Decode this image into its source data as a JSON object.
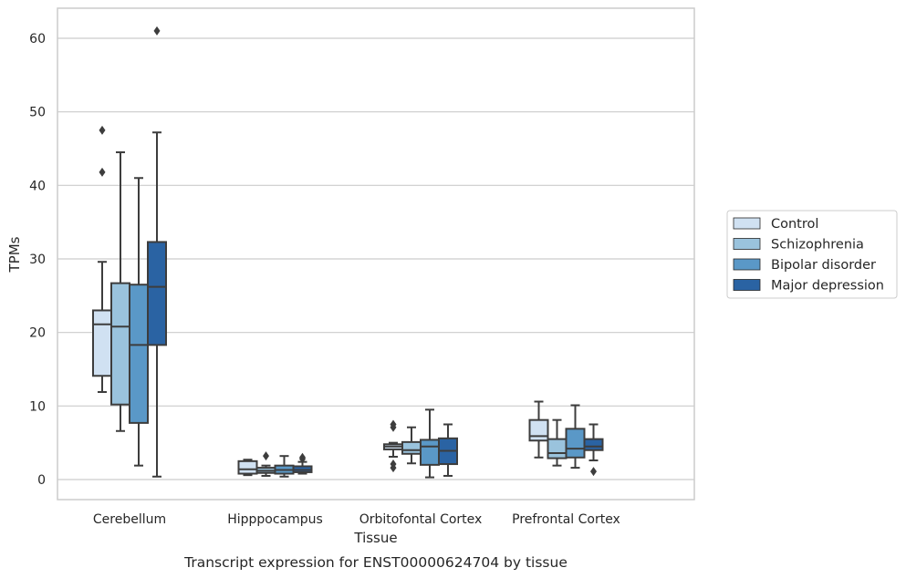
{
  "chart_data": {
    "type": "box",
    "title": "",
    "caption": "Transcript expression for ENST00000624704 by tissue",
    "xlabel": "Tissue",
    "ylabel": "TPMs",
    "ylim": [
      -2.7,
      64.0
    ],
    "yticks": [
      0,
      10,
      20,
      30,
      40,
      50,
      60
    ],
    "grid": "horizontal",
    "legend_position": "right",
    "categories": [
      "Cerebellum",
      "Hipppocampus",
      "Orbitofontal Cortex",
      "Prefrontal Cortex"
    ],
    "series": [
      {
        "name": "Control",
        "color": "#d0e1f2",
        "boxes": [
          {
            "whislo": 11.9,
            "q1": 14.1,
            "med": 21.1,
            "q3": 23.0,
            "whishi": 29.6,
            "fliers": [
              41.8,
              47.5
            ]
          },
          {
            "whislo": 0.6,
            "q1": 0.8,
            "med": 1.4,
            "q3": 2.5,
            "whishi": 2.7,
            "fliers": []
          },
          {
            "whislo": 3.1,
            "q1": 4.1,
            "med": 4.5,
            "q3": 4.8,
            "whishi": 5.0,
            "fliers": [
              1.6,
              2.1,
              7.1,
              7.5
            ]
          },
          {
            "whislo": 3.0,
            "q1": 5.3,
            "med": 5.9,
            "q3": 8.1,
            "whishi": 10.6,
            "fliers": []
          }
        ]
      },
      {
        "name": "Schizophrenia",
        "color": "#9ac3dd",
        "boxes": [
          {
            "whislo": 6.6,
            "q1": 10.2,
            "med": 20.8,
            "q3": 26.7,
            "whishi": 44.5,
            "fliers": []
          },
          {
            "whislo": 0.5,
            "q1": 0.9,
            "med": 1.2,
            "q3": 1.6,
            "whishi": 1.9,
            "fliers": [
              3.2
            ]
          },
          {
            "whislo": 2.2,
            "q1": 3.5,
            "med": 4.0,
            "q3": 5.1,
            "whishi": 7.1,
            "fliers": []
          },
          {
            "whislo": 1.9,
            "q1": 2.9,
            "med": 3.6,
            "q3": 5.5,
            "whishi": 8.1,
            "fliers": []
          }
        ]
      },
      {
        "name": "Bipolar disorder",
        "color": "#5a98c7",
        "boxes": [
          {
            "whislo": 1.9,
            "q1": 7.7,
            "med": 18.3,
            "q3": 26.5,
            "whishi": 41.0,
            "fliers": []
          },
          {
            "whislo": 0.4,
            "q1": 0.8,
            "med": 1.3,
            "q3": 1.9,
            "whishi": 3.2,
            "fliers": []
          },
          {
            "whislo": 0.3,
            "q1": 2.0,
            "med": 4.5,
            "q3": 5.4,
            "whishi": 9.5,
            "fliers": []
          },
          {
            "whislo": 1.6,
            "q1": 3.0,
            "med": 4.2,
            "q3": 6.9,
            "whishi": 10.1,
            "fliers": []
          }
        ]
      },
      {
        "name": "Major depression",
        "color": "#2a63a3",
        "boxes": [
          {
            "whislo": 0.4,
            "q1": 18.3,
            "med": 26.2,
            "q3": 32.3,
            "whishi": 47.2,
            "fliers": [
              61.0
            ]
          },
          {
            "whislo": 0.8,
            "q1": 1.0,
            "med": 1.3,
            "q3": 1.8,
            "whishi": 2.4,
            "fliers": [
              2.8,
              3.0
            ]
          },
          {
            "whislo": 0.5,
            "q1": 2.1,
            "med": 3.9,
            "q3": 5.6,
            "whishi": 7.5,
            "fliers": []
          },
          {
            "whislo": 2.6,
            "q1": 4.0,
            "med": 4.5,
            "q3": 5.5,
            "whishi": 7.5,
            "fliers": [
              1.1
            ]
          }
        ]
      }
    ]
  }
}
